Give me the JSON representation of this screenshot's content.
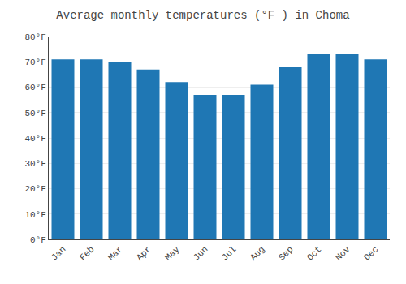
{
  "chart_data": {
    "type": "bar",
    "title": "Average monthly temperatures (°F ) in Choma",
    "categories": [
      "Jan",
      "Feb",
      "Mar",
      "Apr",
      "May",
      "Jun",
      "Jul",
      "Aug",
      "Sep",
      "Oct",
      "Nov",
      "Dec"
    ],
    "values": [
      71,
      71,
      70,
      67,
      62,
      57,
      57,
      61,
      68,
      73,
      73,
      71
    ],
    "ylim": [
      0,
      80
    ],
    "yticks": [
      {
        "value": 0,
        "label": "0°F"
      },
      {
        "value": 10,
        "label": "10°F"
      },
      {
        "value": 20,
        "label": "20°F"
      },
      {
        "value": 30,
        "label": "30°F"
      },
      {
        "value": 40,
        "label": "40°F"
      },
      {
        "value": 50,
        "label": "50°F"
      },
      {
        "value": 60,
        "label": "60°F"
      },
      {
        "value": 70,
        "label": "70°F"
      },
      {
        "value": 80,
        "label": "80°F"
      }
    ],
    "grid": true
  }
}
